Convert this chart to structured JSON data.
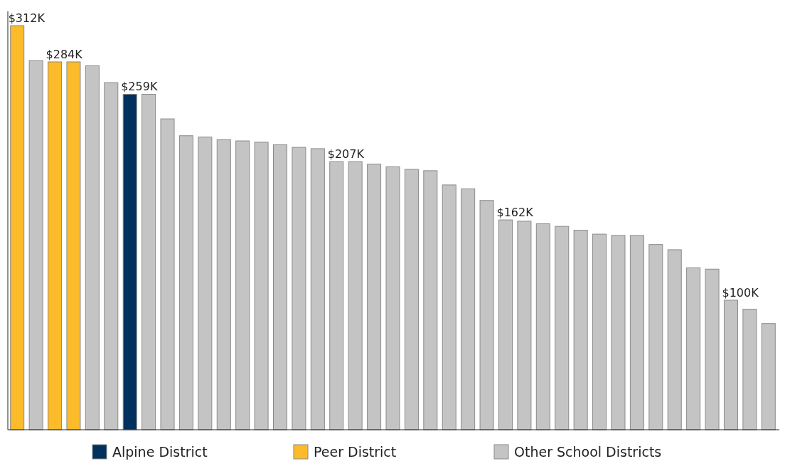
{
  "chart_data": {
    "type": "bar",
    "categories": [
      null,
      null,
      null,
      null,
      null,
      null,
      null,
      null,
      null,
      null,
      null,
      null,
      null,
      null,
      null,
      null,
      null,
      null,
      null,
      null,
      null,
      null,
      null,
      null,
      null,
      null,
      null,
      null,
      null,
      null,
      null,
      null,
      null,
      null,
      null,
      null,
      null,
      null,
      null,
      null,
      null
    ],
    "series": [
      {
        "name": "Alpine District",
        "color": "#00305e",
        "values": [
          null,
          null,
          null,
          null,
          null,
          null,
          259,
          null,
          null,
          null,
          null,
          null,
          null,
          null,
          null,
          null,
          null,
          null,
          null,
          null,
          null,
          null,
          null,
          null,
          null,
          null,
          null,
          null,
          null,
          null,
          null,
          null,
          null,
          null,
          null,
          null,
          null,
          null,
          null,
          null,
          null
        ],
        "value_labels": [
          null,
          null,
          null,
          null,
          null,
          null,
          "$259K",
          null,
          null,
          null,
          null,
          null,
          null,
          null,
          null,
          null,
          null,
          null,
          null,
          null,
          null,
          null,
          null,
          null,
          null,
          null,
          null,
          null,
          null,
          null,
          null,
          null,
          null,
          null,
          null,
          null,
          null,
          null,
          null,
          null,
          null
        ]
      },
      {
        "name": "Peer District",
        "color": "#fbbb2a",
        "values": [
          312,
          null,
          284,
          284,
          null,
          null,
          null,
          null,
          null,
          null,
          null,
          null,
          null,
          null,
          null,
          null,
          null,
          null,
          null,
          null,
          null,
          null,
          null,
          null,
          null,
          null,
          null,
          null,
          null,
          null,
          null,
          null,
          null,
          null,
          null,
          null,
          null,
          null,
          null,
          null,
          null
        ],
        "value_labels": [
          "$312K",
          null,
          "$284K",
          null,
          null,
          null,
          null,
          null,
          null,
          null,
          null,
          null,
          null,
          null,
          null,
          null,
          null,
          null,
          null,
          null,
          null,
          null,
          null,
          null,
          null,
          null,
          null,
          null,
          null,
          null,
          null,
          null,
          null,
          null,
          null,
          null,
          null,
          null,
          null,
          null,
          null
        ]
      },
      {
        "name": "Other School Districts",
        "color": "#c4c4c4",
        "values": [
          null,
          285,
          null,
          null,
          281,
          268,
          null,
          259,
          240,
          227,
          226,
          224,
          223,
          222,
          220,
          218,
          217,
          207,
          207,
          205,
          203,
          201,
          200,
          189,
          186,
          177,
          162,
          161,
          159,
          157,
          154,
          151,
          150,
          150,
          143,
          139,
          125,
          124,
          100,
          93,
          82
        ],
        "value_labels": [
          null,
          null,
          null,
          null,
          null,
          null,
          null,
          null,
          null,
          null,
          null,
          null,
          null,
          null,
          null,
          null,
          null,
          "$207K",
          null,
          null,
          null,
          null,
          null,
          null,
          null,
          null,
          "$162K",
          null,
          null,
          null,
          null,
          null,
          null,
          null,
          null,
          null,
          null,
          null,
          "$100K",
          null,
          null
        ]
      }
    ],
    "stacked": true,
    "legend": "bottom"
  }
}
